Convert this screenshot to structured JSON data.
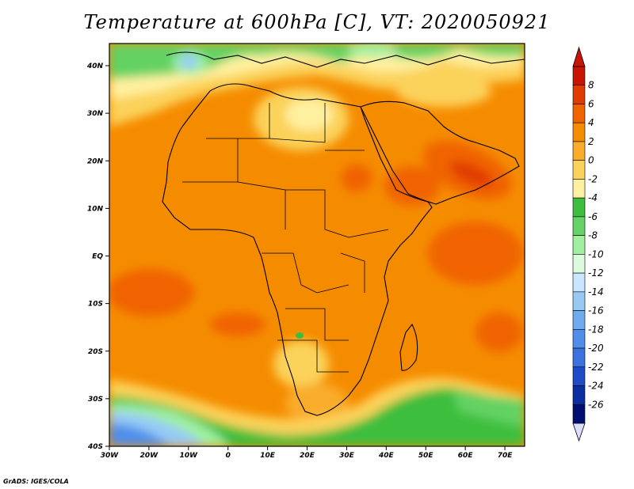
{
  "title": "Temperature at 600hPa [C], VT: 2020050921",
  "credit": "GrADS: IGES/COLA",
  "map": {
    "x_ticks": [
      "30W",
      "20W",
      "10W",
      "0",
      "10E",
      "20E",
      "30E",
      "40E",
      "50E",
      "60E",
      "70E"
    ],
    "y_ticks": [
      "40N",
      "30N",
      "20N",
      "10N",
      "EQ",
      "10S",
      "20S",
      "30S",
      "40S"
    ]
  },
  "colorbar": {
    "labels": [
      "8",
      "6",
      "4",
      "2",
      "0",
      "-2",
      "-4",
      "-6",
      "-8",
      "-10",
      "-12",
      "-14",
      "-16",
      "-18",
      "-20",
      "-22",
      "-24",
      "-26"
    ],
    "colors": [
      "#c81400",
      "#e13c00",
      "#f06400",
      "#f58c00",
      "#f9ac2a",
      "#fbd25a",
      "#fff0a0",
      "#3ebe3e",
      "#64d264",
      "#a0f0a0",
      "#dcfadc",
      "#c8e6ff",
      "#96caf5",
      "#6eaaf0",
      "#4f8fea",
      "#3a73df",
      "#1e4cc8",
      "#0a2fa0",
      "#001070"
    ],
    "top_color": "#c81400",
    "bottom_color": "#ddddff"
  }
}
